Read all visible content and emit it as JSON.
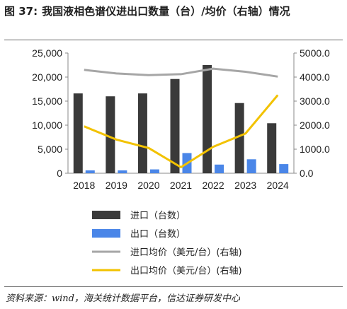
{
  "title": {
    "figure": "图 37:",
    "text": "我国液相色谱仪进出口数量（台）/均价（右轴）情况"
  },
  "source": "资料来源：wind，海关统计数据平台，信达证券研发中心",
  "colors": {
    "import_qty": "#3a3a3a",
    "export_qty": "#4a86e8",
    "import_price": "#a6a6a6",
    "export_price": "#f2c200"
  },
  "chart_data": {
    "type": "bar",
    "categories": [
      "2018",
      "2019",
      "2020",
      "2021",
      "2022",
      "2023",
      "2024"
    ],
    "series": [
      {
        "name": "进口（台数）",
        "type": "bar",
        "axis": "left",
        "values": [
          16600,
          16000,
          16600,
          19600,
          22500,
          14600,
          10400
        ]
      },
      {
        "name": "出口（台数）",
        "type": "bar",
        "axis": "left",
        "values": [
          600,
          600,
          800,
          4200,
          1800,
          2900,
          1900
        ]
      },
      {
        "name": "进口均价（美元/台）(右轴)",
        "type": "line",
        "axis": "right",
        "values": [
          4300,
          4150,
          4080,
          4120,
          4350,
          4220,
          4020
        ]
      },
      {
        "name": "出口均价（美元/台）(右轴)",
        "type": "line",
        "axis": "right",
        "values": [
          1950,
          1400,
          1050,
          250,
          1100,
          1650,
          3250
        ]
      }
    ],
    "y_left": {
      "lim": [
        0,
        25000
      ],
      "ticks": [
        "0",
        "5,000",
        "10,000",
        "15,000",
        "20,000",
        "25,000"
      ]
    },
    "y_right": {
      "lim": [
        0,
        5000
      ],
      "ticks": [
        "0.0",
        "1000.0",
        "2000.0",
        "3000.0",
        "4000.0",
        "5000.0"
      ]
    },
    "grid": false,
    "legend_position": "bottom"
  }
}
